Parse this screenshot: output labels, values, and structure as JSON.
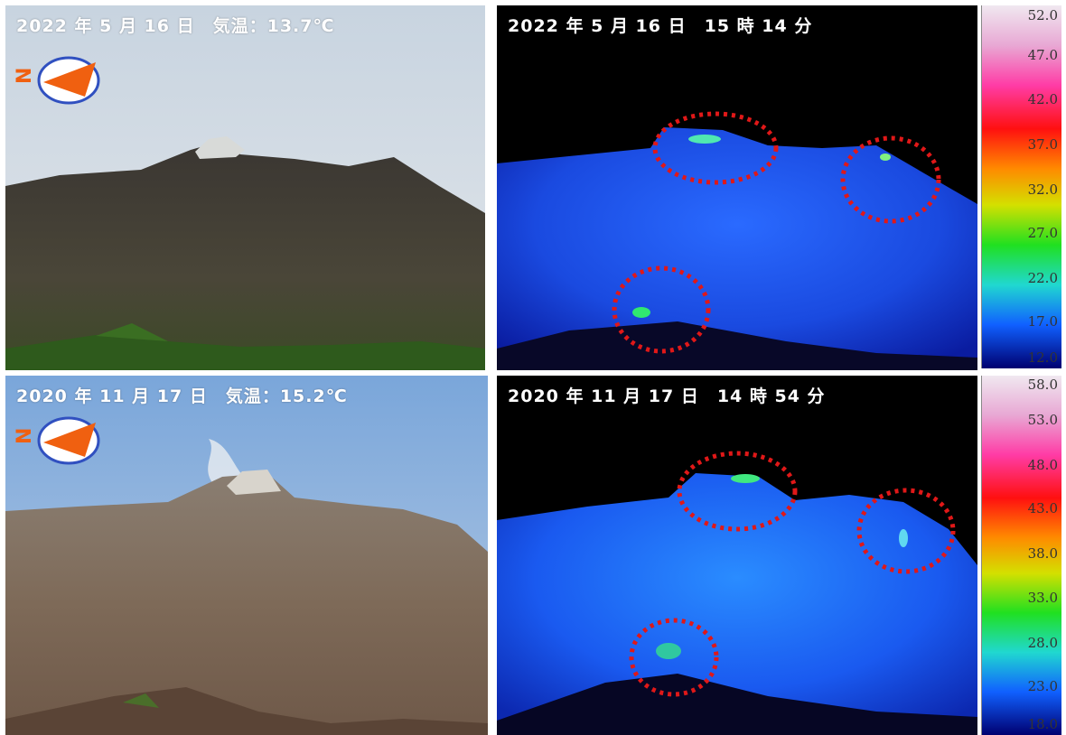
{
  "panels": [
    {
      "caption": "2022 年 5 月 16 日　気温：13.7℃"
    },
    {
      "caption": "2022 年 5 月 16 日　15 時 14 分"
    },
    {
      "caption": "2020 年 11 月 17 日　気温：15.2℃"
    },
    {
      "caption": "2020 年 11 月 17 日　14 時 54 分"
    }
  ],
  "compass": {
    "letter": "N"
  },
  "scale_top": [
    "52.0",
    "47.0",
    "42.0",
    "37.0",
    "32.0",
    "27.0",
    "22.0",
    "17.0",
    "12.0"
  ],
  "scale_bottom": [
    "58.0",
    "53.0",
    "48.0",
    "43.0",
    "38.0",
    "33.0",
    "28.0",
    "23.0",
    "18.0"
  ],
  "colors": {
    "marker": "#e01818",
    "compass": "#f06010"
  }
}
